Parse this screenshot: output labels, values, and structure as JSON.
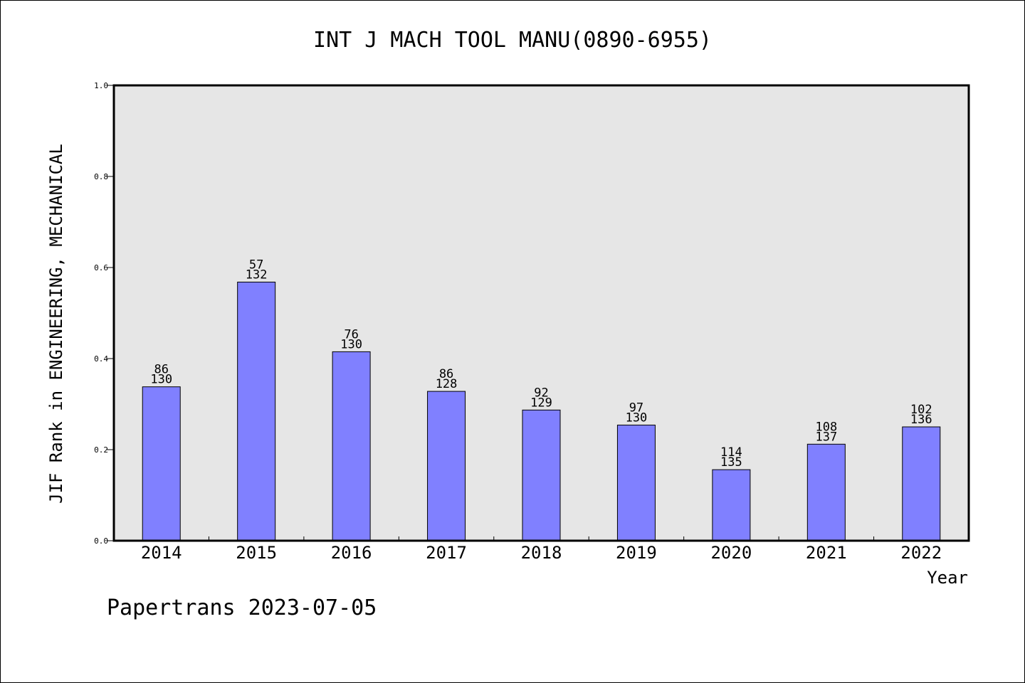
{
  "chart_data": {
    "type": "bar",
    "title": "INT J MACH TOOL MANU(0890-6955)",
    "ylabel": "JIF Rank in ENGINEERING, MECHANICAL",
    "xlabel": "Year",
    "ylim": [
      0.0,
      1.0
    ],
    "yticks": [
      "0.0",
      "0.2",
      "0.4",
      "0.6",
      "0.8",
      "1.0"
    ],
    "ytick_values": [
      0.0,
      0.2,
      0.4,
      0.6,
      0.8,
      1.0
    ],
    "grid": false,
    "categories": [
      "2014",
      "2015",
      "2016",
      "2017",
      "2018",
      "2019",
      "2020",
      "2021",
      "2022"
    ],
    "values": [
      0.338,
      0.568,
      0.415,
      0.328,
      0.287,
      0.254,
      0.156,
      0.212,
      0.25
    ],
    "rank": [
      "86",
      "57",
      "76",
      "86",
      "92",
      "97",
      "114",
      "108",
      "102"
    ],
    "total": [
      "130",
      "132",
      "130",
      "128",
      "129",
      "130",
      "135",
      "137",
      "136"
    ],
    "colors": {
      "bar": "#8080ff",
      "plot_bg": "#e6e6e6",
      "axis": "#000000"
    }
  },
  "footer": "Papertrans 2023-07-05"
}
